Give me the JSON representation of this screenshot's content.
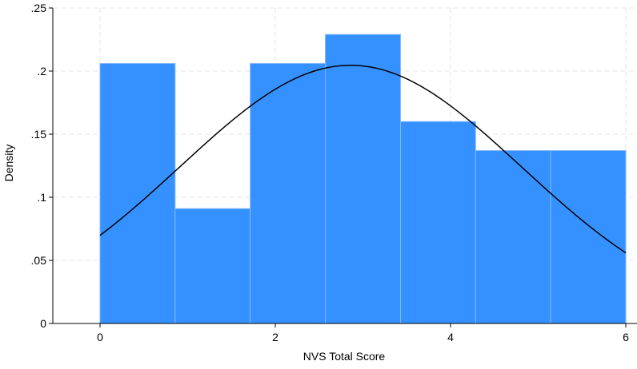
{
  "chart_data": {
    "type": "bar",
    "subtype": "histogram",
    "title": "",
    "xlabel": "NVS Total Score",
    "ylabel": "Density",
    "xlim": [
      -0.55,
      6.1
    ],
    "ylim": [
      0,
      0.25
    ],
    "grid": true,
    "legend": "none",
    "xticks": [
      0,
      2,
      4,
      6
    ],
    "xtick_labels": [
      "0",
      "2",
      "4",
      "6"
    ],
    "yticks": [
      0,
      0.05,
      0.1,
      0.15,
      0.2,
      0.25
    ],
    "ytick_labels": [
      "0",
      ".05",
      ".1",
      ".15",
      ".2",
      ".25"
    ],
    "bins": [
      {
        "start": 0.0,
        "end": 0.857,
        "density": 0.206
      },
      {
        "start": 0.857,
        "end": 1.714,
        "density": 0.091
      },
      {
        "start": 1.714,
        "end": 2.571,
        "density": 0.206
      },
      {
        "start": 2.571,
        "end": 3.429,
        "density": 0.229
      },
      {
        "start": 3.429,
        "end": 4.286,
        "density": 0.16
      },
      {
        "start": 4.286,
        "end": 5.143,
        "density": 0.137
      },
      {
        "start": 5.143,
        "end": 6.0,
        "density": 0.137
      }
    ],
    "normal_curve": {
      "mean": 2.86,
      "sd": 1.95,
      "x_range": [
        0,
        6
      ]
    },
    "colors": {
      "bar_fill": "#3591ff",
      "bar_edge": "#7fb6ff",
      "curve": "#000000",
      "grid": "#e6e6e6"
    }
  }
}
